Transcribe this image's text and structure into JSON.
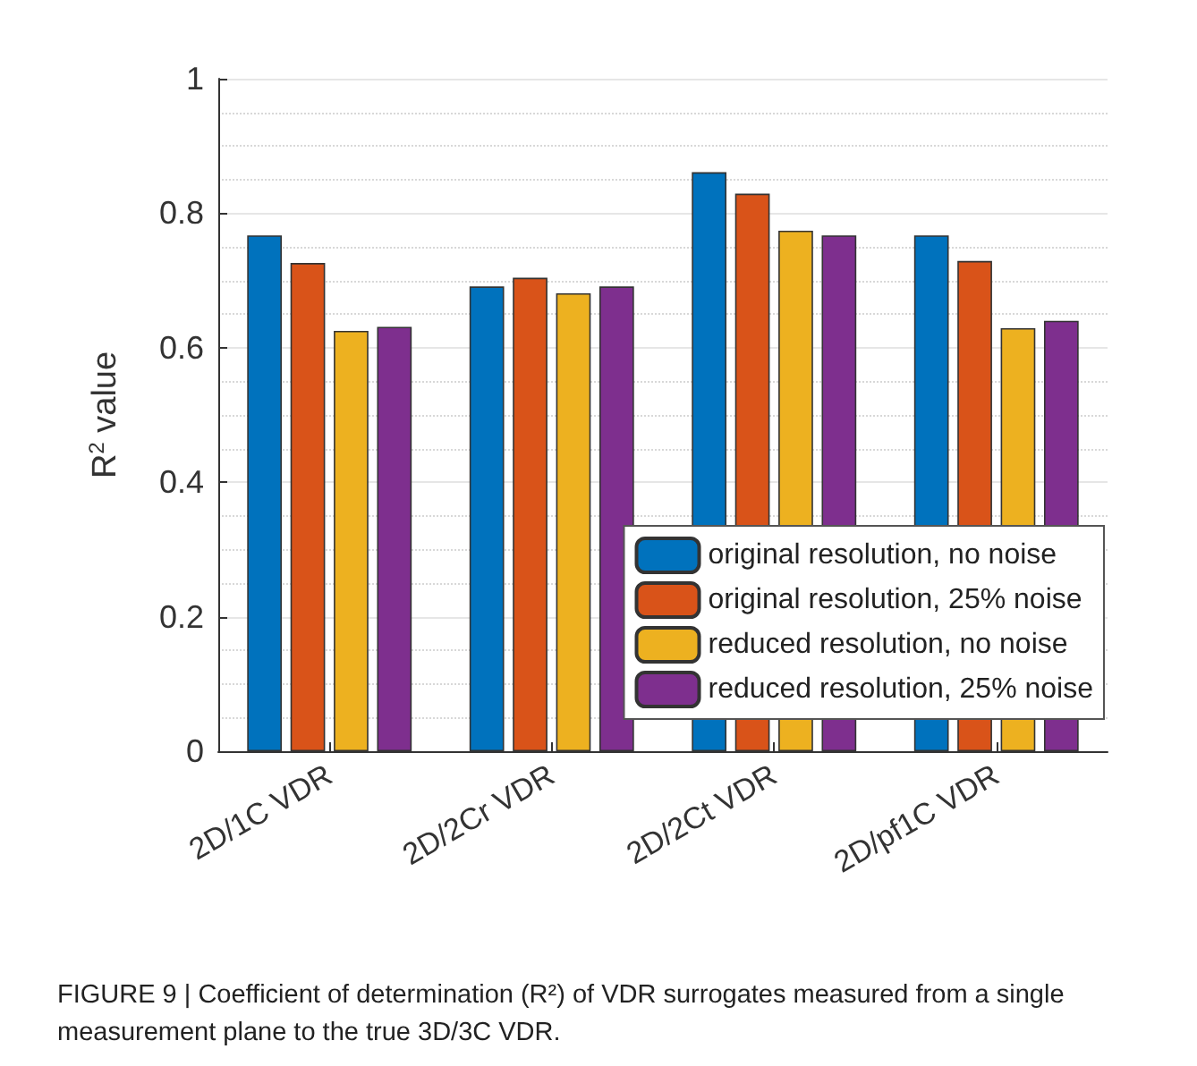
{
  "chart_data": {
    "type": "bar",
    "ylabel": "R$^{2}$ value",
    "categories": [
      "2D/1C VDR",
      "2D/2Cr VDR",
      "2D/2Ct VDR",
      "2D/pf1C VDR"
    ],
    "series": [
      {
        "name": "original resolution, no noise",
        "color": "#0072bd",
        "values": [
          0.767,
          0.691,
          0.861,
          0.767
        ]
      },
      {
        "name": "original resolution, 25% noise",
        "color": "#d95319",
        "values": [
          0.726,
          0.704,
          0.829,
          0.729
        ]
      },
      {
        "name": "reduced resolution, no noise",
        "color": "#edb120",
        "values": [
          0.625,
          0.681,
          0.774,
          0.629
        ]
      },
      {
        "name": "reduced resolution, 25% noise",
        "color": "#7e2f8e",
        "values": [
          0.631,
          0.691,
          0.767,
          0.64
        ]
      }
    ],
    "ylim": [
      0,
      1
    ],
    "yticks": [
      0,
      0.2,
      0.4,
      0.6,
      0.8,
      1
    ],
    "grid": "y",
    "legend": "bottom right",
    "annotations": [
      "FIGURE 9 | Coefficient of determination (R²) of VDR surrogates measured from a single measurement plane to the true 3D/3C VDR."
    ]
  }
}
